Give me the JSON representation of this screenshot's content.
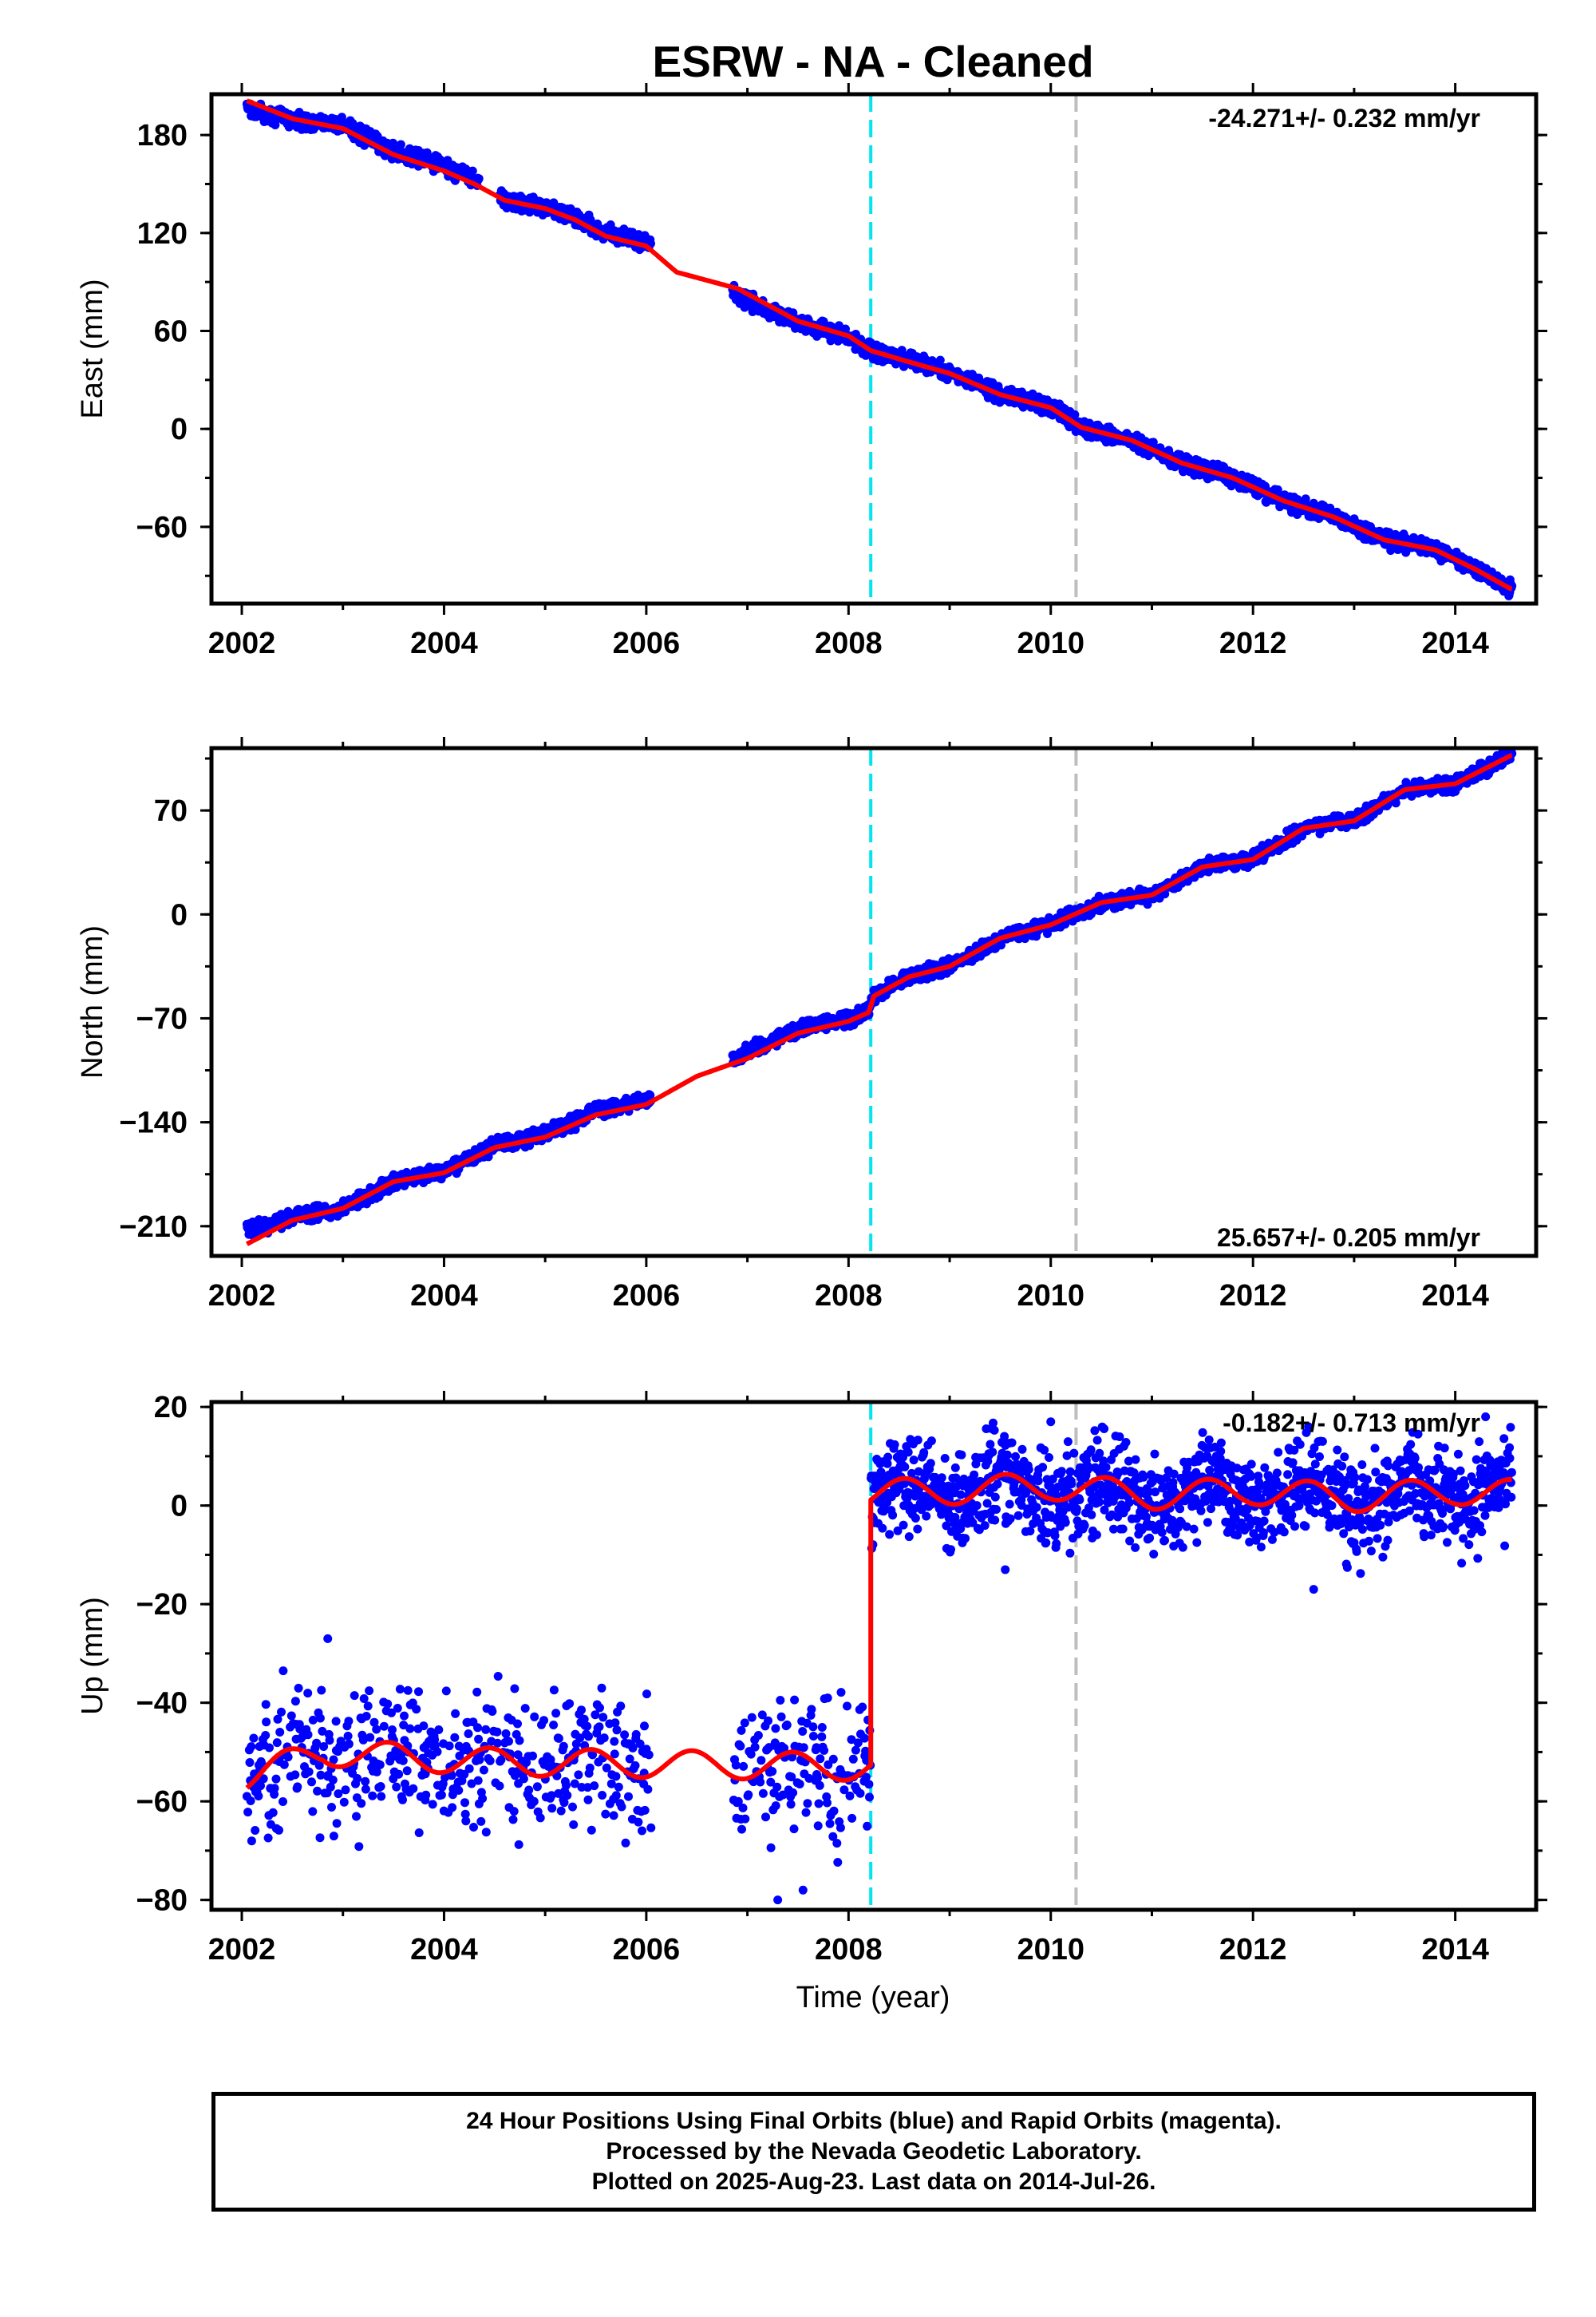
{
  "title": "ESRW  - NA - Cleaned",
  "colors": {
    "data_points": "#0000ff",
    "model_line": "#ff0000",
    "cyan_line": "#00e5ee",
    "gray_line": "#bebebe",
    "frame": "#000000"
  },
  "xlabel": "Time (year)",
  "caption": {
    "line1": "24 Hour Positions Using Final Orbits (blue) and Rapid Orbits (magenta).",
    "line2": "Processed by the Nevada Geodetic Laboratory.",
    "line3": "Plotted on 2025-Aug-23. Last data on 2014-Jul-26."
  },
  "chart_data": [
    {
      "type": "scatter",
      "name": "east",
      "ylabel": "East (mm)",
      "rate_text": "-24.271+/- 0.232 mm/yr",
      "xlim": [
        2001.7,
        2014.8
      ],
      "ylim": [
        -107,
        205
      ],
      "xticks": [
        2002,
        2004,
        2006,
        2008,
        2010,
        2012,
        2014
      ],
      "yticks": [
        -60,
        0,
        60,
        120,
        180
      ],
      "ytick_labels": [
        "−60",
        "0",
        "60",
        "120",
        "180"
      ],
      "vlines": [
        2008.22,
        2010.25
      ],
      "model_line": {
        "x": [
          2002.05,
          2002.5,
          2003.0,
          2003.5,
          2004.0,
          2004.3,
          2004.6,
          2005.0,
          2005.3,
          2005.6,
          2006.0,
          2006.3,
          2006.6,
          2006.9,
          2007.2,
          2007.5,
          2008.0,
          2008.22,
          2008.6,
          2009.0,
          2009.5,
          2010.0,
          2010.3,
          2010.8,
          2011.3,
          2011.8,
          2012.3,
          2012.8,
          2013.3,
          2013.8,
          2014.2,
          2014.55
        ],
        "y": [
          201,
          190,
          184,
          168,
          158,
          150,
          140,
          135,
          128,
          118,
          112,
          96,
          91,
          86,
          76,
          66,
          57,
          48,
          41,
          34,
          21,
          13,
          1,
          -7,
          -21,
          -30,
          -44,
          -54,
          -68,
          -74,
          -86,
          -98
        ]
      },
      "points": {
        "anchors_x": [
          2002.05,
          2002.5,
          2003.0,
          2003.5,
          2004.0,
          2004.3,
          2004.6,
          2005.0,
          2005.3,
          2005.6,
          2006.0,
          2006.9,
          2007.2,
          2007.5,
          2008.0,
          2008.22,
          2008.6,
          2009.0,
          2009.5,
          2010.0,
          2010.3,
          2010.8,
          2011.3,
          2011.8,
          2012.3,
          2012.8,
          2013.3,
          2013.8,
          2014.2,
          2014.55
        ],
        "anchors_y": [
          196,
          189,
          186,
          170,
          161,
          152,
          140,
          136,
          130,
          120,
          114,
          82,
          72,
          65,
          56,
          48,
          42,
          35,
          21,
          14,
          1,
          -7,
          -21,
          -30,
          -44,
          -54,
          -68,
          -74,
          -86,
          -98
        ],
        "gaps": [
          [
            2004.35,
            2004.55
          ],
          [
            2006.05,
            2006.85
          ]
        ],
        "scatter_amplitude_mm": 6
      }
    },
    {
      "type": "scatter",
      "name": "north",
      "ylabel": "North (mm)",
      "rate_text": "25.657+/- 0.205 mm/yr",
      "xlim": [
        2001.7,
        2014.8
      ],
      "ylim": [
        -230,
        112
      ],
      "xticks": [
        2002,
        2004,
        2006,
        2008,
        2010,
        2012,
        2014
      ],
      "yticks": [
        -210,
        -140,
        -70,
        0,
        70
      ],
      "ytick_labels": [
        "−210",
        "−140",
        "−70",
        "0",
        "70"
      ],
      "vlines": [
        2008.22,
        2010.25
      ],
      "model_line": {
        "x": [
          2002.05,
          2002.5,
          2003.0,
          2003.5,
          2004.0,
          2004.5,
          2005.0,
          2005.5,
          2006.0,
          2006.5,
          2007.0,
          2007.5,
          2008.0,
          2008.2,
          2008.25,
          2008.6,
          2009.0,
          2009.5,
          2010.0,
          2010.5,
          2011.0,
          2011.5,
          2012.0,
          2012.5,
          2013.0,
          2013.5,
          2014.0,
          2014.55
        ],
        "y": [
          -222,
          -206,
          -198,
          -180,
          -174,
          -157,
          -150,
          -135,
          -128,
          -109,
          -97,
          -80,
          -72,
          -66,
          -55,
          -42,
          -35,
          -16,
          -7,
          8,
          13,
          32,
          37,
          58,
          63,
          84,
          88,
          107
        ]
      },
      "points": {
        "anchors_x": [
          2002.05,
          2002.5,
          2003.0,
          2003.5,
          2004.0,
          2004.5,
          2005.0,
          2005.5,
          2006.0,
          2006.9,
          2007.5,
          2008.0,
          2008.2,
          2008.25,
          2008.6,
          2009.0,
          2009.5,
          2010.0,
          2010.5,
          2011.0,
          2011.5,
          2012.0,
          2012.5,
          2013.0,
          2013.5,
          2014.0,
          2014.55
        ],
        "anchors_y": [
          -213,
          -204,
          -198,
          -180,
          -173,
          -156,
          -148,
          -133,
          -125,
          -96,
          -77,
          -70,
          -66,
          -55,
          -42,
          -35,
          -16,
          -7,
          8,
          13,
          32,
          37,
          58,
          63,
          84,
          88,
          107
        ],
        "gaps": [
          [
            2006.05,
            2006.85
          ]
        ],
        "scatter_amplitude_mm": 6
      }
    },
    {
      "type": "scatter",
      "name": "up",
      "ylabel": "Up (mm)",
      "rate_text": "-0.182+/- 0.713 mm/yr",
      "xlim": [
        2001.7,
        2014.8
      ],
      "ylim": [
        -82,
        21
      ],
      "xticks": [
        2002,
        2004,
        2006,
        2008,
        2010,
        2012,
        2014
      ],
      "xtick_labels": [
        "2002",
        "2004",
        "2006",
        "2008",
        "2010",
        "2012",
        "2014"
      ],
      "yticks": [
        -80,
        -60,
        -40,
        -20,
        0,
        20
      ],
      "ytick_labels": [
        "−80",
        "−60",
        "−40",
        "−20",
        "0",
        "20"
      ],
      "vlines": [
        2008.22,
        2010.25
      ],
      "offset_epoch": 2008.22,
      "seasonal": {
        "before_mean": -52,
        "after_mean": 2.5,
        "amplitude": 2.8,
        "drift_before": [
          [
            2002.05,
            -3
          ],
          [
            2002.8,
            2
          ],
          [
            2003.6,
            1
          ],
          [
            2004.5,
            0
          ],
          [
            2008.2,
            -1
          ]
        ],
        "drift_after": [
          [
            2008.25,
            0
          ],
          [
            2009.0,
            0.5
          ],
          [
            2010.0,
            1.5
          ],
          [
            2011.0,
            -0.5
          ],
          [
            2012.0,
            0.5
          ],
          [
            2013.0,
            -1
          ],
          [
            2014.0,
            0.5
          ],
          [
            2014.55,
            0
          ]
        ]
      },
      "points": {
        "gaps": [
          [
            2006.05,
            2006.85
          ]
        ],
        "scatter_before_mm": 10,
        "scatter_after_mm": 7,
        "outliers": [
          [
            2002.85,
            -27
          ],
          [
            2007.3,
            -80
          ],
          [
            2007.55,
            -78
          ],
          [
            2009.55,
            -13
          ],
          [
            2010.0,
            17
          ],
          [
            2012.6,
            -17
          ],
          [
            2014.3,
            18
          ]
        ]
      }
    }
  ]
}
